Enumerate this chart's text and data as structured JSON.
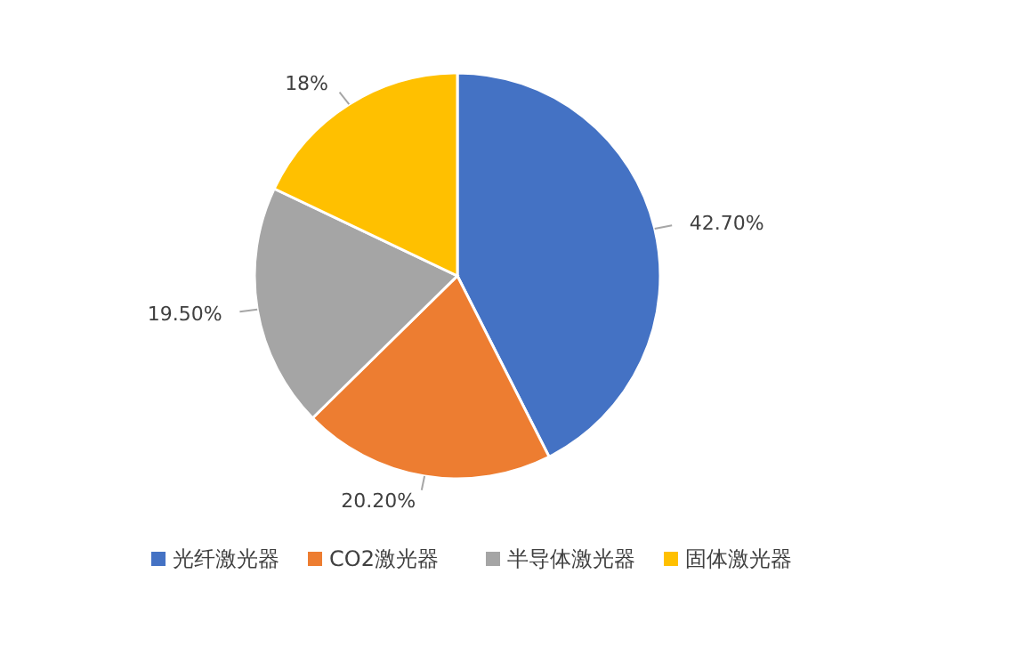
{
  "chart_data": {
    "type": "pie",
    "categories": [
      "光纤激光器",
      "CO2激光器",
      "半导体激光器",
      "固体激光器"
    ],
    "values": [
      42.7,
      20.2,
      19.5,
      18
    ],
    "colors": [
      "#4472c4",
      "#ed7d31",
      "#a5a5a5",
      "#ffc000"
    ],
    "value_labels": [
      "42.70%",
      "20.20%",
      "19.50%",
      "18%"
    ],
    "legend": "bottom"
  }
}
